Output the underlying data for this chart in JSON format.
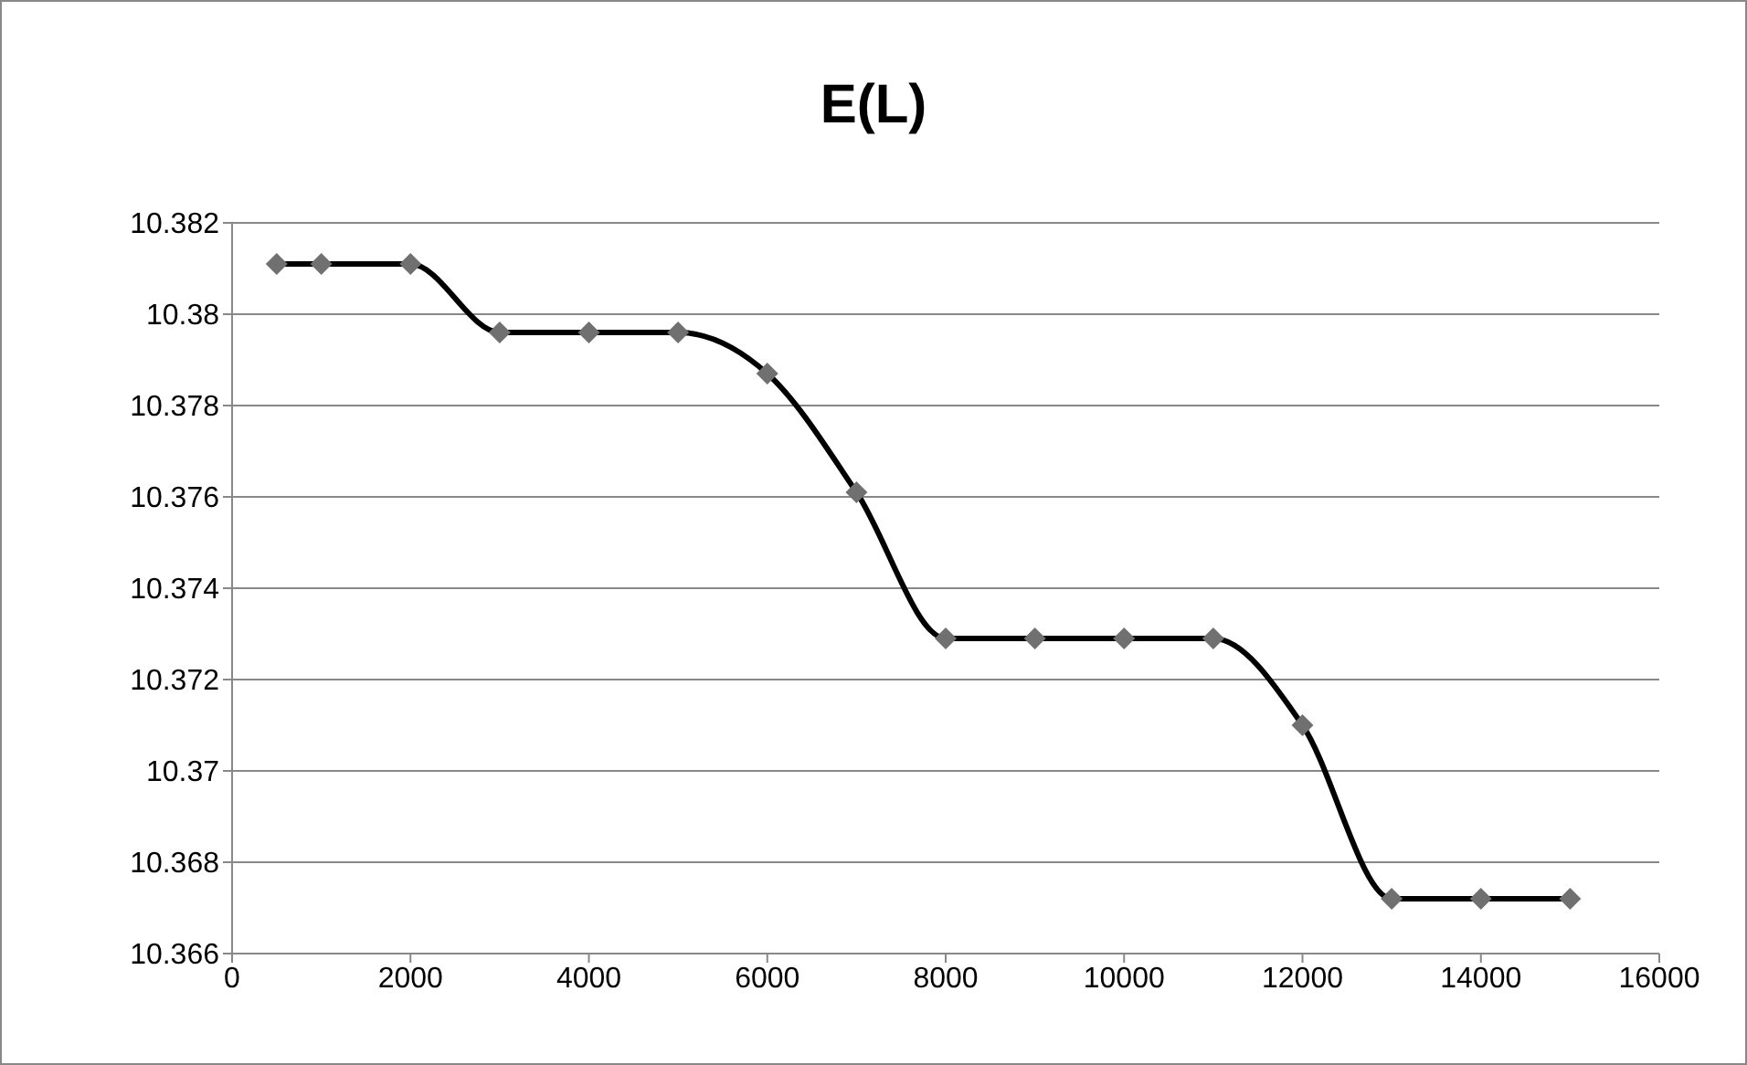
{
  "chart_data": {
    "type": "line",
    "title": "E(L)",
    "x": [
      500,
      1000,
      2000,
      3000,
      4000,
      5000,
      6000,
      7000,
      8000,
      9000,
      10000,
      11000,
      12000,
      13000,
      14000,
      15000
    ],
    "series": [
      {
        "color": "#000000",
        "colors": [
          "#707070",
          "#707070",
          "#707070",
          "#707070",
          "#707070",
          "#707070",
          "#707070",
          "#707070",
          "#707070",
          "#707070",
          "#707070",
          "#707070",
          "#707070",
          "#707070",
          "#707070",
          "#707070"
        ],
        "values": [
          10.3811,
          10.3811,
          10.3811,
          10.3796,
          10.3796,
          10.3796,
          10.3787,
          10.3761,
          10.3729,
          10.3729,
          10.3729,
          10.3729,
          10.371,
          10.3672,
          10.3672,
          10.3672
        ]
      }
    ],
    "xlim": [
      0,
      16000
    ],
    "xticks": [
      0,
      2000,
      4000,
      6000,
      8000,
      10000,
      12000,
      14000,
      16000
    ],
    "ylim": [
      10.366,
      10.382
    ],
    "yticks": [
      10.366,
      10.368,
      10.37,
      10.372,
      10.374,
      10.376,
      10.378,
      10.38,
      10.382
    ],
    "grid": "y",
    "marker": "diamond",
    "line_style": "solid"
  }
}
